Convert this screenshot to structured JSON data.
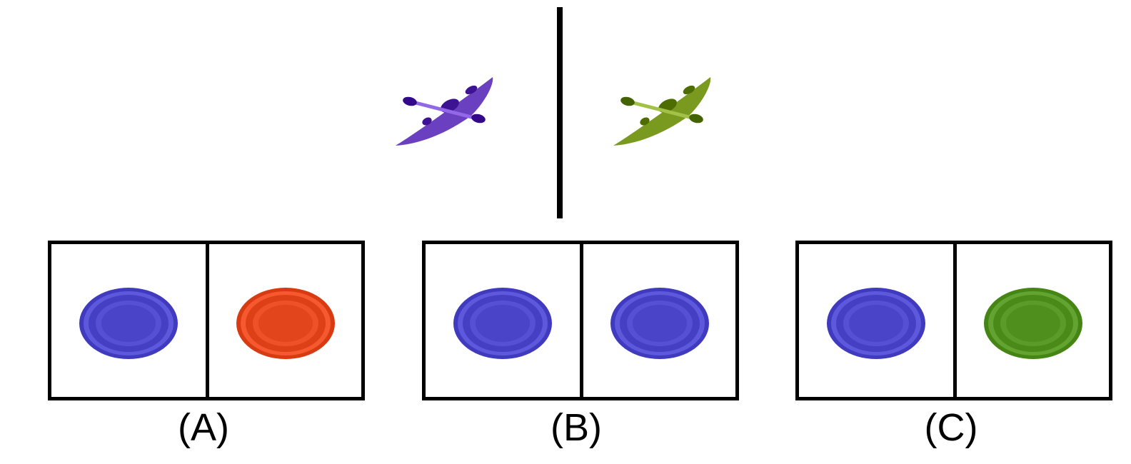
{
  "top": {
    "left_object": {
      "icon": "kayak-icon",
      "color": "#6a3fc0"
    },
    "right_object": {
      "icon": "kayak-icon",
      "color": "#7a9a1f"
    }
  },
  "options": [
    {
      "label": "(A)",
      "left_plate": {
        "icon": "plate-icon",
        "color": "#4a44c8"
      },
      "right_plate": {
        "icon": "plate-icon",
        "color": "#e2451c"
      }
    },
    {
      "label": "(B)",
      "left_plate": {
        "icon": "plate-icon",
        "color": "#4a44c8"
      },
      "right_plate": {
        "icon": "plate-icon",
        "color": "#4a44c8"
      }
    },
    {
      "label": "(C)",
      "left_plate": {
        "icon": "plate-icon",
        "color": "#4a44c8"
      },
      "right_plate": {
        "icon": "plate-icon",
        "color": "#4f8f1e"
      }
    }
  ]
}
